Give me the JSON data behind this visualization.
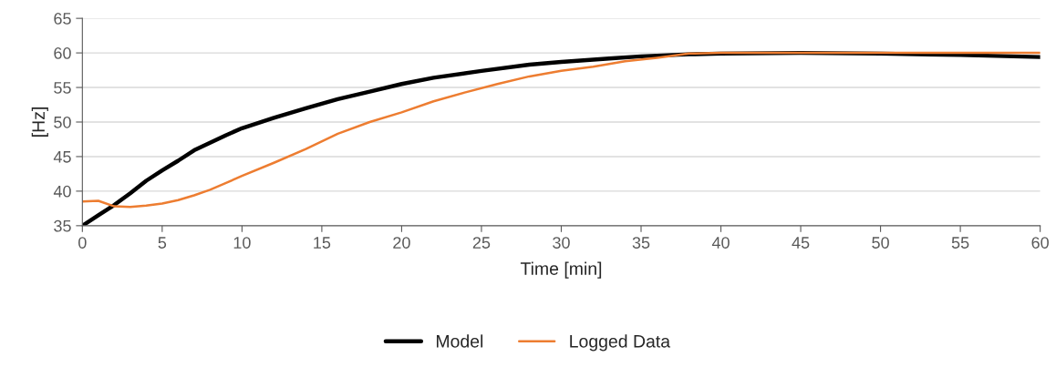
{
  "chart_data": {
    "type": "line",
    "xlabel": "Time [min]",
    "ylabel": "[Hz]",
    "xlim": [
      0,
      60
    ],
    "ylim": [
      35,
      65
    ],
    "xticks": [
      0,
      5,
      10,
      15,
      20,
      25,
      30,
      35,
      40,
      45,
      50,
      55,
      60
    ],
    "yticks": [
      35,
      40,
      45,
      50,
      55,
      60,
      65
    ],
    "grid": "y",
    "legend": "bottom",
    "marker": "none",
    "line_style": "solid",
    "series": [
      {
        "name": "Model",
        "color": "#000000",
        "x": [
          0,
          1,
          2,
          3,
          4,
          5,
          6,
          7,
          8,
          9,
          10,
          12,
          14,
          16,
          18,
          20,
          22,
          25,
          28,
          30,
          33,
          35,
          38,
          40,
          45,
          50,
          55,
          60
        ],
        "values": [
          35,
          36.5,
          38,
          39.7,
          41.5,
          43,
          44.4,
          45.9,
          47,
          48.1,
          49.1,
          50.6,
          52,
          53.3,
          54.4,
          55.5,
          56.4,
          57.4,
          58.3,
          58.7,
          59.2,
          59.5,
          59.8,
          59.9,
          60,
          59.9,
          59.7,
          59.4
        ]
      },
      {
        "name": "Logged Data",
        "color": "#ed7d31",
        "x": [
          0,
          1,
          2,
          3,
          4,
          5,
          6,
          7,
          8,
          9,
          10,
          12,
          14,
          16,
          18,
          20,
          22,
          24,
          26,
          28,
          30,
          32,
          34,
          36,
          38,
          40,
          45,
          50,
          55,
          60
        ],
        "values": [
          38.5,
          38.6,
          37.8,
          37.7,
          37.9,
          38.2,
          38.7,
          39.4,
          40.2,
          41.2,
          42.2,
          44.1,
          46.1,
          48.3,
          50,
          51.4,
          53,
          54.3,
          55.5,
          56.6,
          57.4,
          58,
          58.8,
          59.3,
          59.9,
          60,
          60,
          60,
          60,
          60
        ]
      }
    ]
  }
}
